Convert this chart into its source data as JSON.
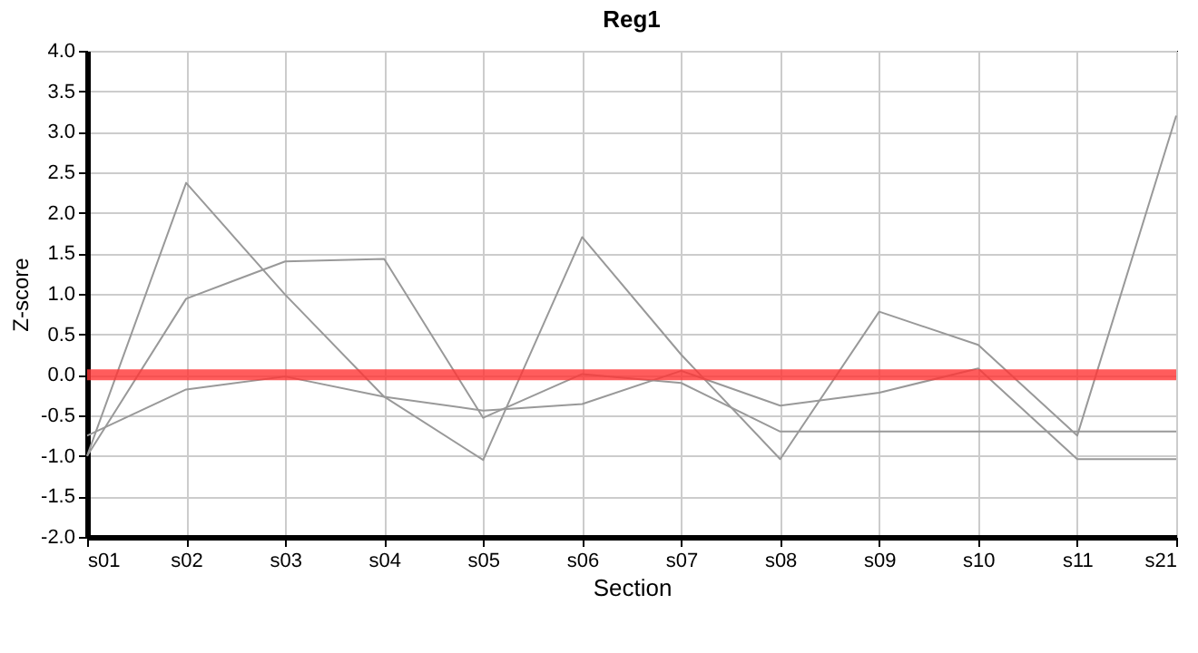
{
  "chart_data": {
    "type": "line",
    "title": "Reg1",
    "xlabel": "Section",
    "ylabel": "Z-score",
    "categories": [
      "s01",
      "s02",
      "s03",
      "s04",
      "s05",
      "s06",
      "s07",
      "s08",
      "s09",
      "s10",
      "s11",
      "s21"
    ],
    "series": [
      {
        "color": "#999999",
        "values": [
          -1.0,
          2.37,
          0.99,
          -0.27,
          -1.05,
          1.7,
          0.25,
          -1.04,
          0.78,
          0.37,
          -0.75,
          3.2
        ]
      },
      {
        "color": "#999999",
        "values": [
          -1.0,
          0.94,
          1.4,
          1.43,
          -0.53,
          0.01,
          -0.1,
          -0.7,
          -0.7,
          -0.7,
          -0.7,
          -0.7
        ]
      },
      {
        "color": "#999999",
        "values": [
          -0.75,
          -0.18,
          -0.02,
          -0.27,
          -0.44,
          -0.36,
          0.05,
          -0.38,
          -0.22,
          0.08,
          -1.04,
          -1.04
        ]
      }
    ],
    "ylim": [
      -2.0,
      4.0
    ],
    "yticks": [
      {
        "value": -2,
        "label": "-2.0"
      },
      {
        "value": -1.5,
        "label": "-1.5"
      },
      {
        "value": -1,
        "label": "-1.0"
      },
      {
        "value": -0.5,
        "label": "-0.5"
      },
      {
        "value": 0,
        "label": "0.0"
      },
      {
        "value": 0.5,
        "label": "0.5"
      },
      {
        "value": 1,
        "label": "1.0"
      },
      {
        "value": 1.5,
        "label": "1.5"
      },
      {
        "value": 2,
        "label": "2.0"
      },
      {
        "value": 2.5,
        "label": "2.5"
      },
      {
        "value": 3,
        "label": "3.0"
      },
      {
        "value": 3.5,
        "label": "3.5"
      },
      {
        "value": 4,
        "label": "4.0"
      }
    ],
    "ref_lines": [
      {
        "axis": "y",
        "value": 0,
        "color": "#ff3333"
      }
    ],
    "grid": true,
    "legend": false,
    "marker": "none",
    "line_style": "solid"
  }
}
